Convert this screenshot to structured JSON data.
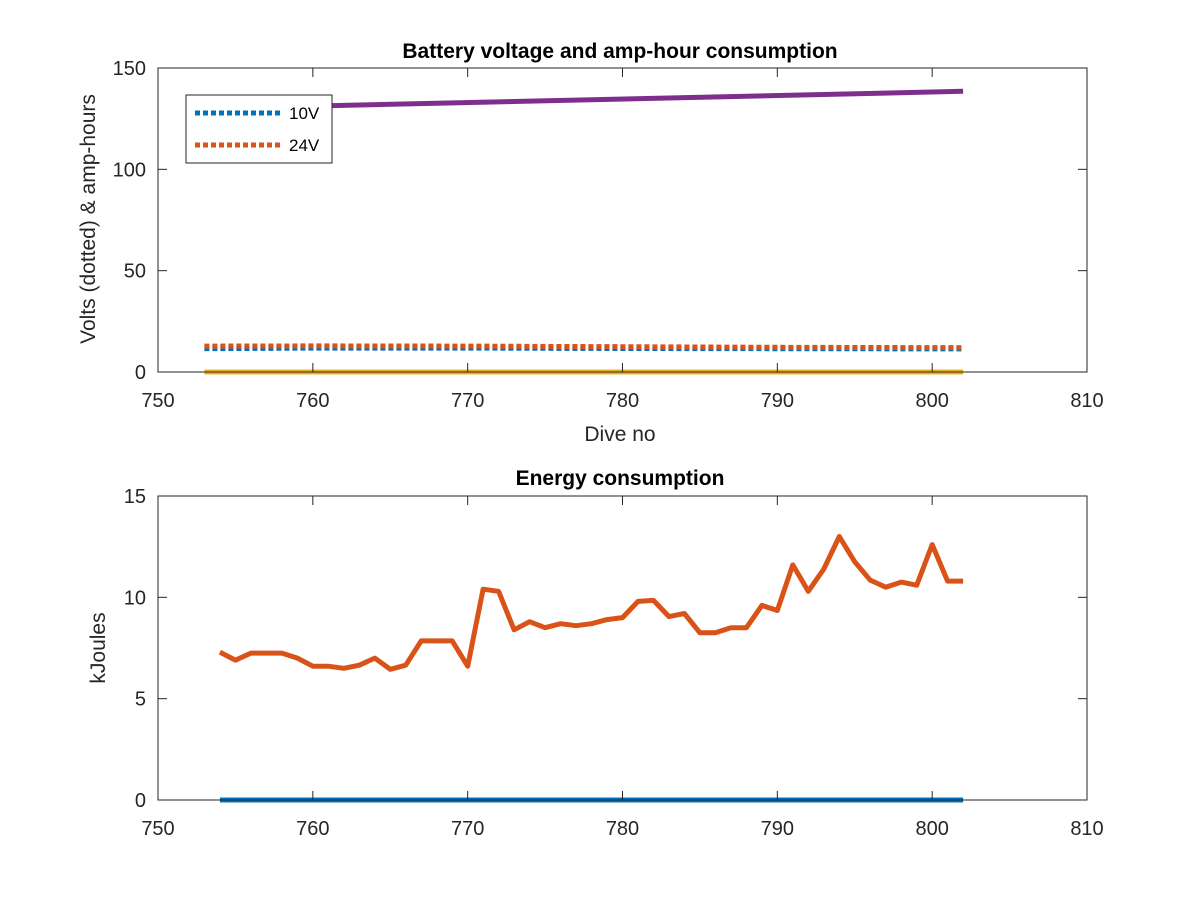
{
  "chart_data": [
    {
      "type": "line",
      "title": "Battery voltage and amp-hour consumption",
      "xlabel": "Dive no",
      "ylabel": "Volts (dotted) & amp-hours",
      "xlim": [
        750,
        810
      ],
      "ylim": [
        0,
        150
      ],
      "xticks": [
        "750",
        "760",
        "770",
        "780",
        "790",
        "800",
        "810"
      ],
      "yticks": [
        "0",
        "50",
        "100",
        "150"
      ],
      "grid": false,
      "legend_position": "top-left",
      "series": [
        {
          "name": "10V",
          "style": "dotted",
          "color": "#0072BD",
          "points": [
            [
              753,
              11.5
            ],
            [
              760,
              11.8
            ],
            [
              770,
              11.8
            ],
            [
              780,
              11.6
            ],
            [
              790,
              11.5
            ],
            [
              802,
              11.4
            ]
          ]
        },
        {
          "name": "24V",
          "style": "dotted",
          "color": "#D95319",
          "points": [
            [
              753,
              12.8
            ],
            [
              760,
              12.9
            ],
            [
              770,
              12.8
            ],
            [
              780,
              12.5
            ],
            [
              790,
              12.2
            ],
            [
              802,
              12.0
            ]
          ]
        },
        {
          "style": "solid",
          "color": "#7E2F8E",
          "points": [
            [
              753,
              130.0
            ],
            [
              802,
              138.5
            ]
          ]
        },
        {
          "style": "solid",
          "color": "#EDB120",
          "points": [
            [
              753,
              0.0
            ],
            [
              802,
              0.0
            ]
          ]
        }
      ]
    },
    {
      "type": "line",
      "title": "Energy consumption",
      "xlabel": "",
      "ylabel": "kJoules",
      "xlim": [
        750,
        810
      ],
      "ylim": [
        0,
        15
      ],
      "xticks": [
        "750",
        "760",
        "770",
        "780",
        "790",
        "800",
        "810"
      ],
      "yticks": [
        "0",
        "5",
        "10",
        "15"
      ],
      "grid": false,
      "series": [
        {
          "style": "solid",
          "color": "#D95319",
          "x": [
            754,
            755,
            756,
            757,
            758,
            759,
            760,
            761,
            762,
            763,
            764,
            765,
            766,
            767,
            768,
            769,
            770,
            771,
            772,
            773,
            774,
            775,
            776,
            777,
            778,
            779,
            780,
            781,
            782,
            783,
            784,
            785,
            786,
            787,
            788,
            789,
            790,
            791,
            792,
            793,
            794,
            795,
            796,
            797,
            798,
            799,
            800,
            801,
            802
          ],
          "y": [
            7.3,
            6.9,
            7.25,
            7.25,
            7.25,
            7.0,
            6.6,
            6.6,
            6.5,
            6.65,
            7.0,
            6.45,
            6.65,
            7.85,
            7.85,
            7.85,
            6.6,
            10.4,
            10.3,
            8.4,
            8.8,
            8.5,
            8.7,
            8.6,
            8.7,
            8.9,
            9.0,
            9.8,
            9.85,
            9.05,
            9.2,
            8.25,
            8.25,
            8.5,
            8.5,
            9.6,
            9.35,
            11.6,
            10.3,
            11.4,
            13.0,
            11.75,
            10.85,
            10.5,
            10.75,
            10.6,
            12.6,
            10.8,
            10.8
          ]
        },
        {
          "style": "solid",
          "color": "#0072BD",
          "x": [
            754,
            802
          ],
          "y": [
            0.0,
            0.0
          ]
        }
      ]
    }
  ]
}
